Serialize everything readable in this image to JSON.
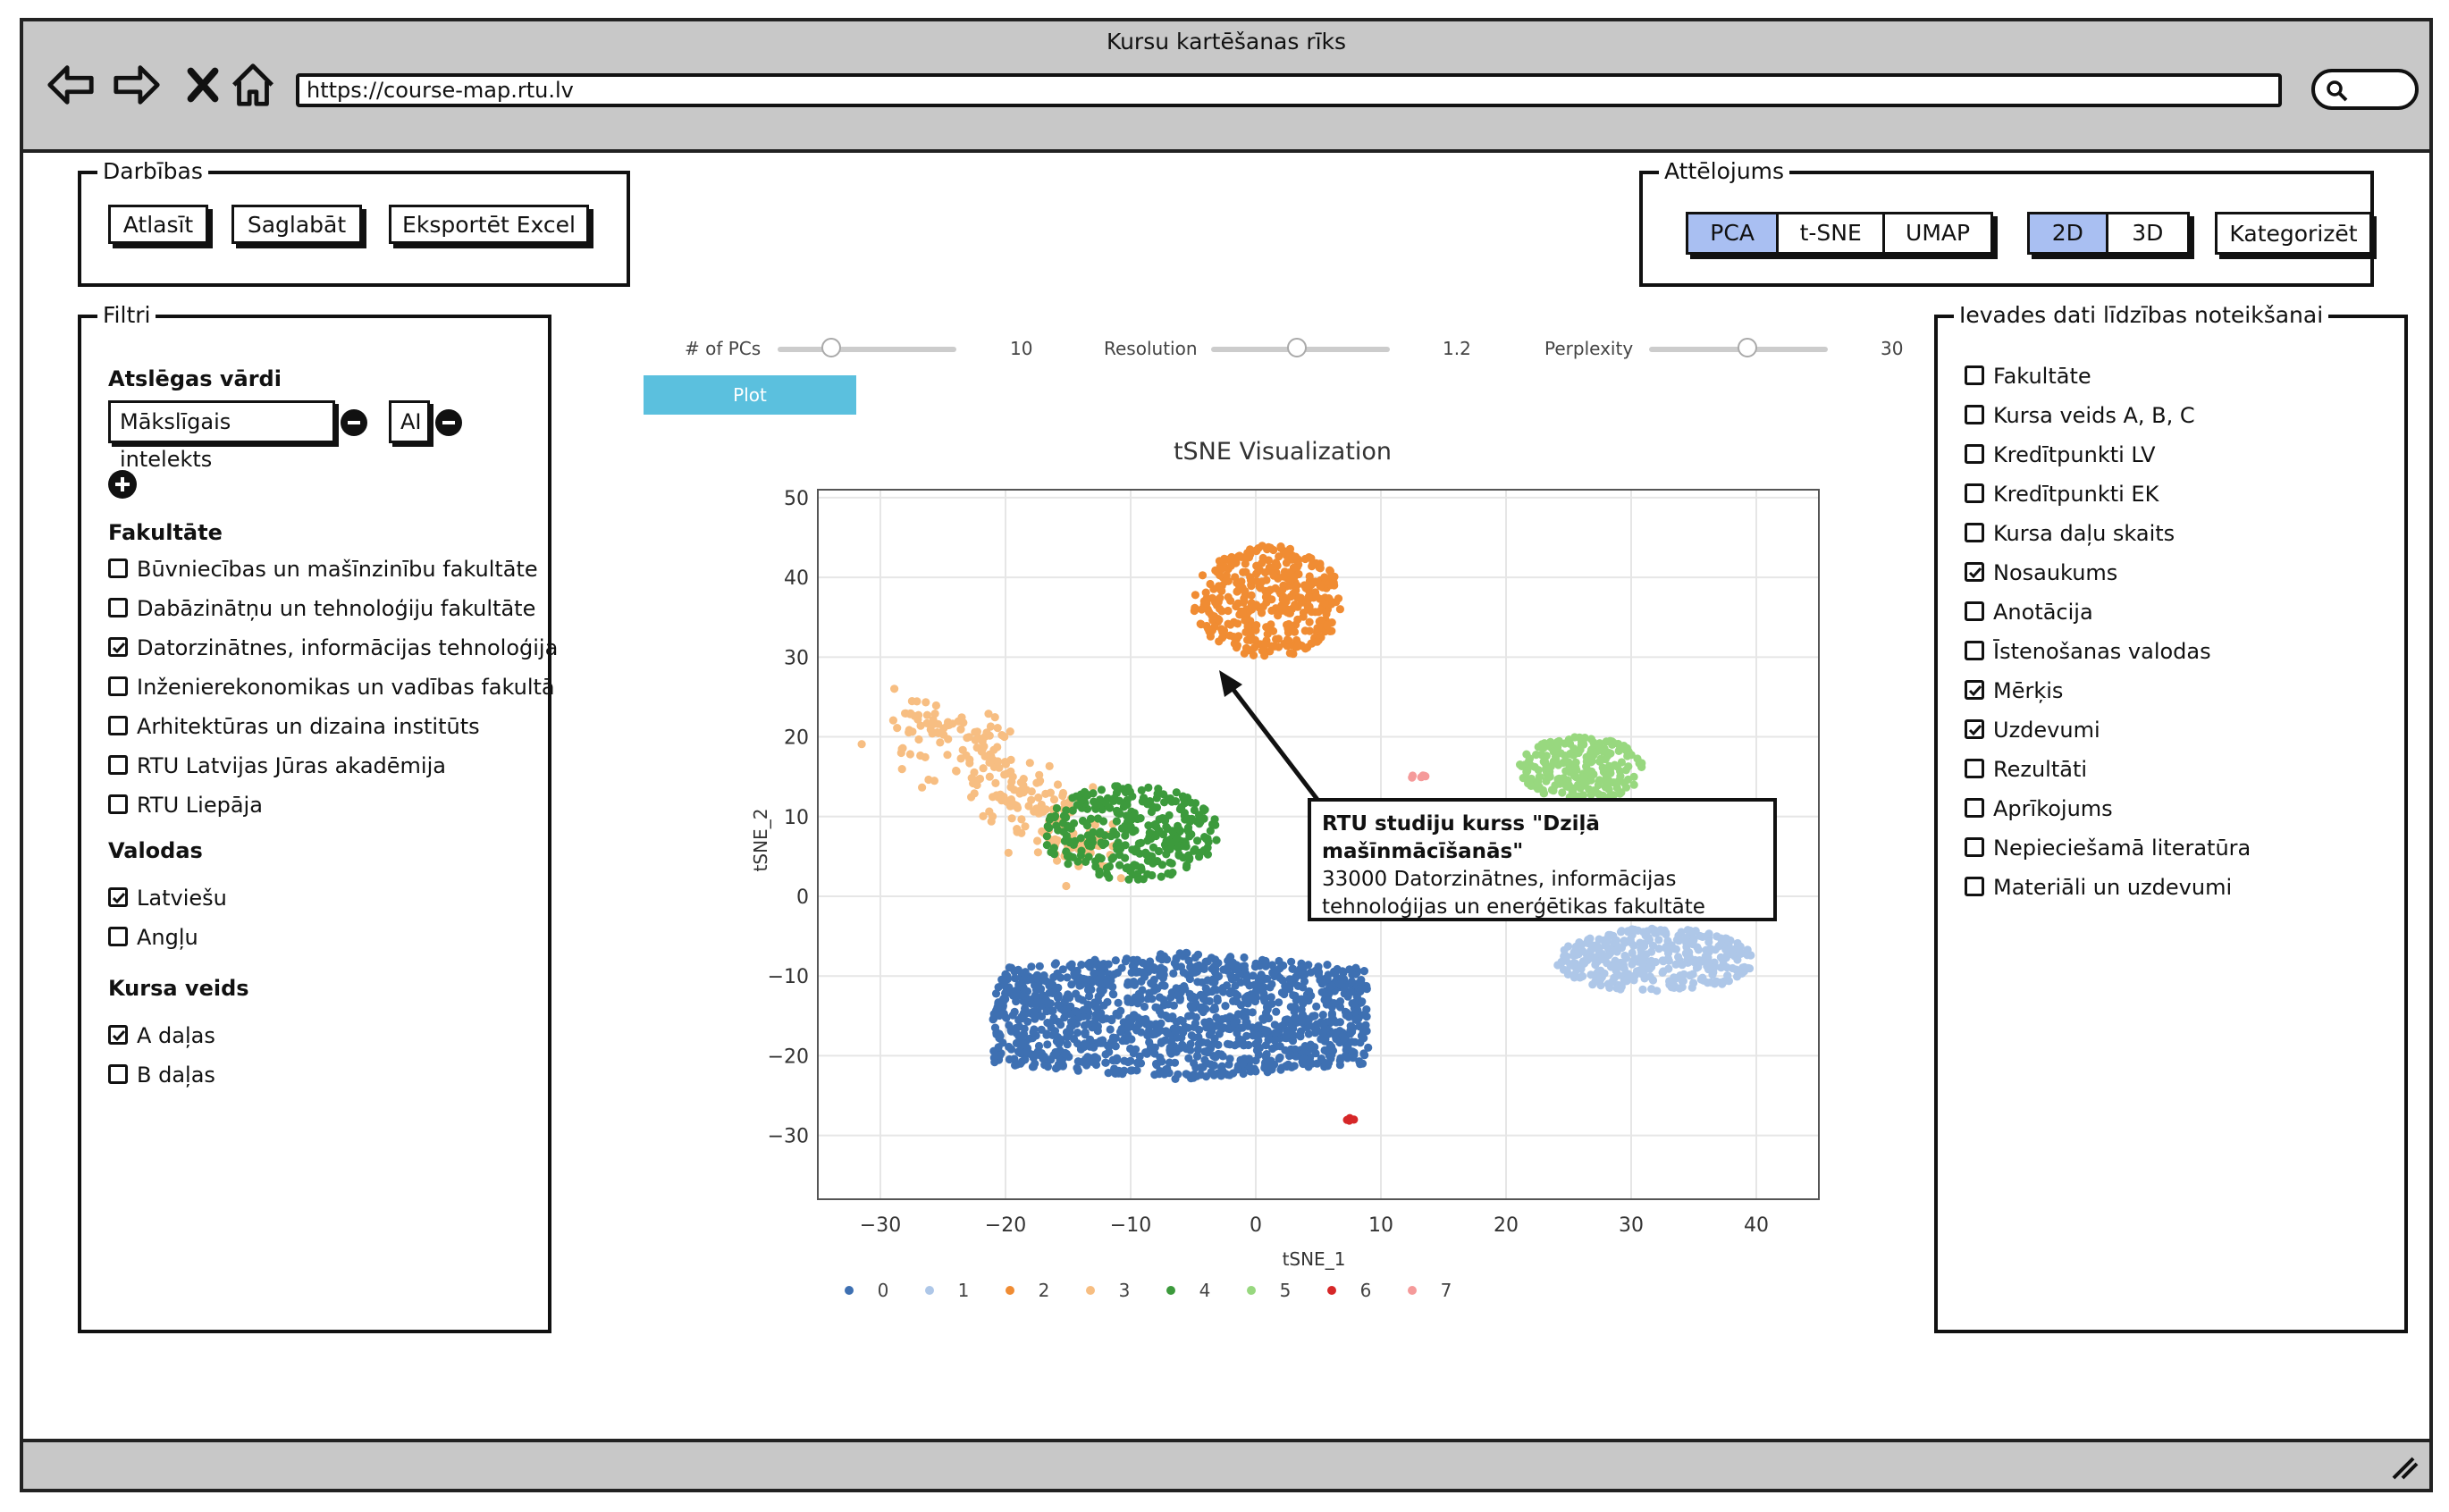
{
  "window": {
    "title": "Kursu kartēšanas rīks",
    "url": "https://course-map.rtu.lv"
  },
  "nav_icons": [
    "back-arrow-icon",
    "forward-arrow-icon",
    "close-x-icon",
    "home-icon",
    "search-icon"
  ],
  "actions": {
    "label": "Darbības",
    "buttons": [
      "Atlasīt",
      "Saglabāt",
      "Eksportēt Excel"
    ]
  },
  "view": {
    "label": "Attēlojums",
    "methods": [
      "PCA",
      "t-SNE",
      "UMAP"
    ],
    "active_method": "PCA",
    "dims": [
      "2D",
      "3D"
    ],
    "active_dim": "2D",
    "categorize_label": "Kategorizēt"
  },
  "filters": {
    "label": "Filtri",
    "keywords_title": "Atslēgas vārdi",
    "keywords": [
      "Mākslīgais intelekts",
      "AI"
    ],
    "faculty_title": "Fakultāte",
    "faculties": [
      {
        "label": "Būvniecības un mašīnzinību fakultāte",
        "checked": false
      },
      {
        "label": "Dabāzinātņu un tehnoloģiju fakultāte",
        "checked": false
      },
      {
        "label": "Datorzinātnes, informācijas tehnoloģija",
        "checked": true
      },
      {
        "label": "Inženierekonomikas un vadības fakultā",
        "checked": false
      },
      {
        "label": "Arhitektūras un dizaina institūts",
        "checked": false
      },
      {
        "label": "RTU Latvijas Jūras akadēmija",
        "checked": false
      },
      {
        "label": "RTU Liepāja",
        "checked": false
      }
    ],
    "languages_title": "Valodas",
    "languages": [
      {
        "label": "Latviešu",
        "checked": true
      },
      {
        "label": "Angļu",
        "checked": false
      }
    ],
    "course_type_title": "Kursa veids",
    "course_types": [
      {
        "label": "A daļas",
        "checked": true
      },
      {
        "label": "B daļas",
        "checked": false
      }
    ]
  },
  "input_data": {
    "label": "Ievades dati līdzības noteikšanai",
    "items": [
      {
        "label": "Fakultāte",
        "checked": false
      },
      {
        "label": "Kursa veids A, B, C",
        "checked": false
      },
      {
        "label": "Kredītpunkti LV",
        "checked": false
      },
      {
        "label": "Kredītpunkti EK",
        "checked": false
      },
      {
        "label": "Kursa daļu skaits",
        "checked": false
      },
      {
        "label": "Nosaukums",
        "checked": true
      },
      {
        "label": "Anotācija",
        "checked": false
      },
      {
        "label": "Īstenošanas valodas",
        "checked": false
      },
      {
        "label": "Mērķis",
        "checked": true
      },
      {
        "label": "Uzdevumi",
        "checked": true
      },
      {
        "label": "Rezultāti",
        "checked": false
      },
      {
        "label": "Aprīkojums",
        "checked": false
      },
      {
        "label": "Nepieciešamā literatūra",
        "checked": false
      },
      {
        "label": "Materiāli un uzdevumi",
        "checked": false
      }
    ]
  },
  "controls": {
    "sliders": [
      {
        "label": "# of PCs",
        "value": "10",
        "fraction": 0.3
      },
      {
        "label": "Resolution",
        "value": "1.2",
        "fraction": 0.48
      },
      {
        "label": "Perplexity",
        "value": "30",
        "fraction": 0.55
      }
    ],
    "plot_label": "Plot"
  },
  "callout": {
    "title": "RTU studiju kurss \"Dziļā mašīnmācīšanās\"",
    "line1": "33000 Datorzinātnes, informācijas",
    "line2": "tehnoloģijas un enerģētikas fakultāte"
  },
  "chart_data": {
    "type": "scatter",
    "title": "tSNE Visualization",
    "xlabel": "tSNE_1",
    "ylabel": "tSNE_2",
    "xlim": [
      -35,
      45
    ],
    "ylim": [
      -38,
      51
    ],
    "xticks": [
      -30,
      -20,
      -10,
      0,
      10,
      20,
      30,
      40
    ],
    "yticks": [
      50,
      40,
      30,
      20,
      10,
      0,
      -10,
      -20,
      -30
    ],
    "grid": true,
    "legend_position": "bottom",
    "series": [
      {
        "name": "0",
        "color": "#3e70b2",
        "center": [
          -6,
          -15
        ],
        "spread": [
          15,
          8
        ],
        "count": 1300,
        "shape": "rect"
      },
      {
        "name": "1",
        "color": "#aec7e8",
        "center": [
          32,
          -8
        ],
        "spread": [
          8,
          4
        ],
        "count": 350,
        "shape": "ellipse"
      },
      {
        "name": "2",
        "color": "#f08c33",
        "center": [
          1,
          37
        ],
        "spread": [
          6,
          7
        ],
        "count": 400,
        "shape": "ellipse"
      },
      {
        "name": "3",
        "color": "#f7be82",
        "center": [
          -20,
          14
        ],
        "spread": [
          7,
          9
        ],
        "count": 250,
        "shape": "diagonal"
      },
      {
        "name": "4",
        "color": "#3c9a3c",
        "center": [
          -10,
          8
        ],
        "spread": [
          7,
          6
        ],
        "count": 320,
        "shape": "ellipse"
      },
      {
        "name": "5",
        "color": "#98d87f",
        "center": [
          26,
          16
        ],
        "spread": [
          5,
          4
        ],
        "count": 220,
        "shape": "ellipse"
      },
      {
        "name": "6",
        "color": "#d62728",
        "center": [
          7.5,
          -28
        ],
        "spread": [
          0.4,
          0.2
        ],
        "count": 4,
        "shape": "ellipse"
      },
      {
        "name": "7",
        "color": "#f59a9a",
        "center": [
          13,
          15
        ],
        "spread": [
          0.8,
          0.2
        ],
        "count": 6,
        "shape": "ellipse"
      }
    ]
  }
}
